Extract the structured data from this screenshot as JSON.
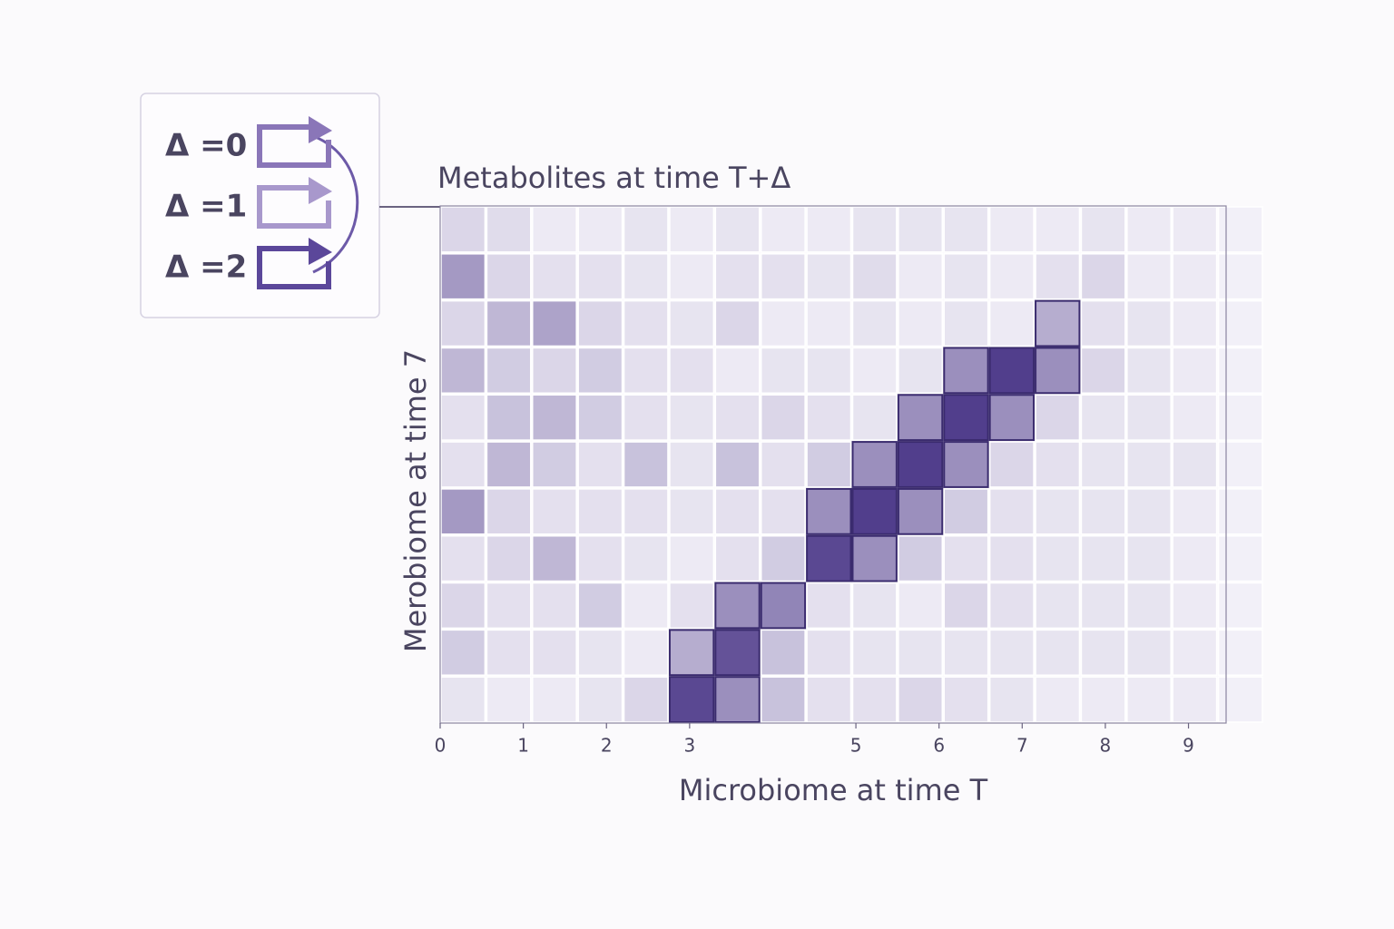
{
  "chart_data": {
    "type": "heatmap",
    "title": "Metabolites at time T+Δ",
    "x_label": "Microbiome at time T",
    "y_label": "Merobiome at time 7",
    "xlim": [
      0,
      9.9
    ],
    "xticks": [
      0,
      1,
      2,
      3,
      5,
      6,
      7,
      8,
      9
    ],
    "colormap": [
      "#f6f4fa",
      "#3f2a80"
    ],
    "legend": [
      {
        "label": "Δ =0",
        "color": "#8a76b8"
      },
      {
        "label": "Δ =1",
        "color": "#a898cc"
      },
      {
        "label": "Δ =2",
        "color": "#5b479a"
      }
    ],
    "z": [
      [
        0.15,
        0.12,
        0.05,
        0.05,
        0.08,
        0.05,
        0.08,
        0.05,
        0.05,
        0.08,
        0.08,
        0.08,
        0.05,
        0.05,
        0.08,
        0.05,
        0.05,
        0.02
      ],
      [
        0.45,
        0.15,
        0.1,
        0.1,
        0.08,
        0.05,
        0.1,
        0.1,
        0.08,
        0.12,
        0.05,
        0.08,
        0.05,
        0.1,
        0.15,
        0.05,
        0.05,
        0.02
      ],
      [
        0.15,
        0.3,
        0.4,
        0.15,
        0.1,
        0.08,
        0.15,
        0.05,
        0.05,
        0.08,
        0.05,
        0.08,
        0.05,
        0.35,
        0.1,
        0.08,
        0.05,
        0.02
      ],
      [
        0.3,
        0.2,
        0.15,
        0.2,
        0.1,
        0.1,
        0.05,
        0.08,
        0.08,
        0.05,
        0.08,
        0.5,
        0.9,
        0.5,
        0.15,
        0.08,
        0.05,
        0.02
      ],
      [
        0.1,
        0.25,
        0.3,
        0.2,
        0.1,
        0.08,
        0.1,
        0.15,
        0.1,
        0.08,
        0.5,
        0.9,
        0.5,
        0.15,
        0.08,
        0.08,
        0.05,
        0.02
      ],
      [
        0.1,
        0.3,
        0.2,
        0.1,
        0.25,
        0.08,
        0.25,
        0.1,
        0.2,
        0.5,
        0.9,
        0.5,
        0.15,
        0.1,
        0.08,
        0.08,
        0.08,
        0.02
      ],
      [
        0.45,
        0.15,
        0.1,
        0.1,
        0.1,
        0.08,
        0.1,
        0.1,
        0.5,
        0.9,
        0.5,
        0.2,
        0.1,
        0.08,
        0.08,
        0.08,
        0.05,
        0.02
      ],
      [
        0.1,
        0.15,
        0.3,
        0.1,
        0.08,
        0.05,
        0.1,
        0.2,
        0.85,
        0.5,
        0.2,
        0.1,
        0.1,
        0.08,
        0.08,
        0.08,
        0.05,
        0.02
      ],
      [
        0.15,
        0.1,
        0.1,
        0.2,
        0.05,
        0.1,
        0.5,
        0.55,
        0.1,
        0.08,
        0.05,
        0.15,
        0.1,
        0.08,
        0.08,
        0.08,
        0.05,
        0.02
      ],
      [
        0.2,
        0.1,
        0.1,
        0.08,
        0.05,
        0.35,
        0.8,
        0.25,
        0.1,
        0.08,
        0.08,
        0.08,
        0.08,
        0.08,
        0.08,
        0.08,
        0.05,
        0.02
      ],
      [
        0.08,
        0.05,
        0.05,
        0.08,
        0.15,
        0.85,
        0.5,
        0.25,
        0.1,
        0.1,
        0.15,
        0.1,
        0.08,
        0.05,
        0.05,
        0.05,
        0.05,
        0.02
      ]
    ]
  }
}
